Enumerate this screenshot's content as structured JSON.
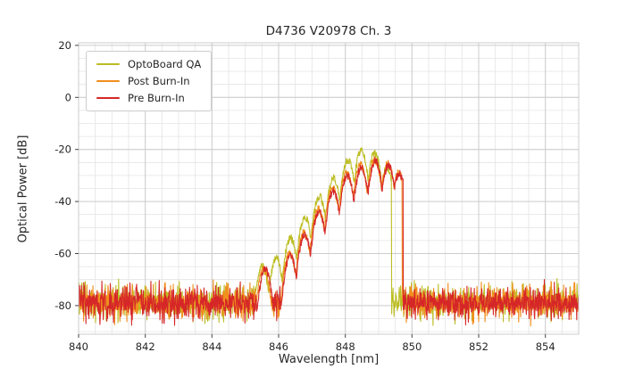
{
  "chart_data": {
    "type": "line",
    "title": "D4736 V20978 Ch. 3",
    "xlabel": "Wavelength [nm]",
    "ylabel": "Optical Power [dB]",
    "xlim": [
      840,
      855
    ],
    "ylim": [
      -91,
      21
    ],
    "x_ticks": [
      840,
      842,
      844,
      846,
      848,
      850,
      852,
      854
    ],
    "y_ticks": [
      20,
      0,
      -20,
      -40,
      -60,
      -80
    ],
    "x_minor_step": 0.5,
    "y_minor_step": 5,
    "grid": true,
    "legend_position": "upper-left",
    "mode_sharpness": 260,
    "series": [
      {
        "name": "OptoBoard QA",
        "color": "#bcbd22",
        "noise_floor_db": -78.5,
        "signal_range": [
          845.15,
          849.38
        ],
        "modes": [
          [
            845.5,
            -65
          ],
          [
            845.93,
            -62
          ],
          [
            846.36,
            -54
          ],
          [
            846.79,
            -46
          ],
          [
            847.22,
            -38
          ],
          [
            847.65,
            -31
          ],
          [
            848.08,
            -24
          ],
          [
            848.48,
            -20.5
          ],
          [
            848.88,
            -21.5
          ],
          [
            849.25,
            -27
          ]
        ]
      },
      {
        "name": "Post Burn-In",
        "color": "#f28e1e",
        "noise_floor_db": -79,
        "signal_range": [
          845.3,
          849.7
        ],
        "modes": [
          [
            845.55,
            -66
          ],
          [
            846.33,
            -60
          ],
          [
            846.76,
            -52
          ],
          [
            847.19,
            -43
          ],
          [
            847.62,
            -35
          ],
          [
            848.04,
            -29
          ],
          [
            848.46,
            -26
          ],
          [
            848.88,
            -24
          ],
          [
            849.28,
            -25.5
          ],
          [
            849.6,
            -29
          ]
        ]
      },
      {
        "name": "Pre Burn-In",
        "color": "#d62728",
        "noise_floor_db": -79,
        "signal_range": [
          845.3,
          849.73
        ],
        "modes": [
          [
            845.6,
            -66
          ],
          [
            846.35,
            -61
          ],
          [
            846.78,
            -53
          ],
          [
            847.21,
            -44
          ],
          [
            847.64,
            -36
          ],
          [
            848.06,
            -30
          ],
          [
            848.48,
            -27
          ],
          [
            848.9,
            -24.5
          ],
          [
            849.3,
            -26
          ],
          [
            849.62,
            -29.5
          ]
        ]
      }
    ]
  }
}
